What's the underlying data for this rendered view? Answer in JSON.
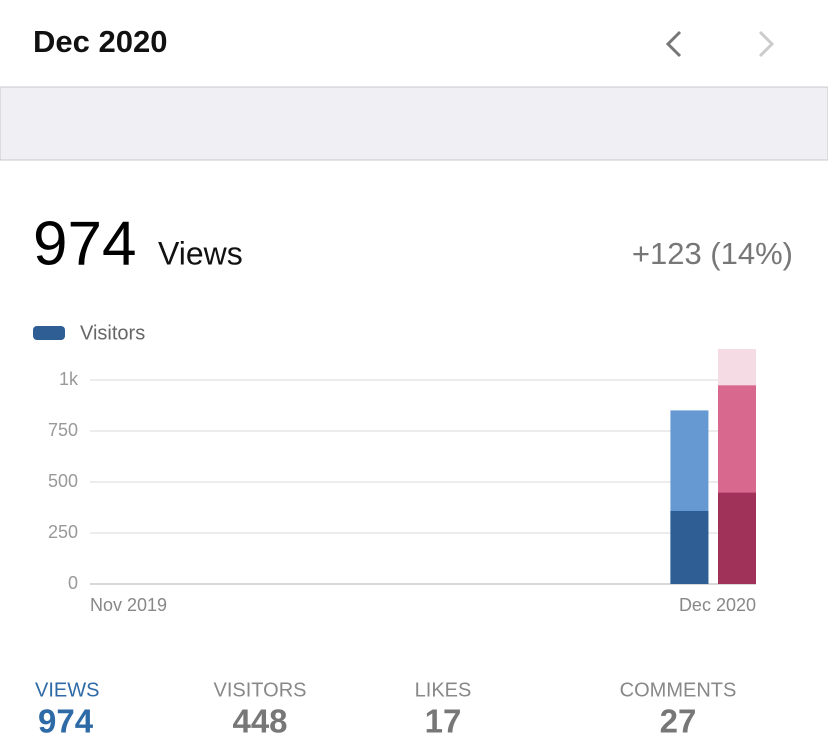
{
  "header": {
    "title": "Dec 2020"
  },
  "summary": {
    "value": "974",
    "label": "Views",
    "change": "+123 (14%)"
  },
  "chart_data": {
    "type": "bar",
    "categories": [
      "Nov 2019",
      null,
      null,
      null,
      null,
      null,
      null,
      null,
      null,
      null,
      null,
      null,
      null,
      "Dec 2020"
    ],
    "series": [
      {
        "name": "Visitors",
        "color": "#2e5e94",
        "highlight_color": "#a0325a",
        "values": [
          0,
          0,
          0,
          0,
          0,
          0,
          0,
          0,
          0,
          0,
          0,
          0,
          358,
          448
        ]
      },
      {
        "color": "#6699d2",
        "highlight_color": "#d9688e",
        "values": [
          0,
          0,
          0,
          0,
          0,
          0,
          0,
          0,
          0,
          0,
          0,
          0,
          851,
          974
        ]
      },
      {
        "color": "#f5dce4",
        "values": [
          null,
          null,
          null,
          null,
          null,
          null,
          null,
          null,
          null,
          null,
          null,
          null,
          null,
          1152
        ]
      }
    ],
    "ylim": [
      0,
      1152
    ],
    "yticks": [
      0,
      250,
      500,
      750,
      {
        "value": 1000,
        "label": "1k"
      }
    ],
    "grid": true,
    "legend": "top-left"
  },
  "stats": [
    {
      "label": "VIEWS",
      "value": 974,
      "selected": true
    },
    {
      "label": "VISITORS",
      "value": 448,
      "selected": false
    },
    {
      "label": "LIKES",
      "value": 17,
      "selected": false
    },
    {
      "label": "COMMENTS",
      "value": 27,
      "selected": false
    }
  ]
}
